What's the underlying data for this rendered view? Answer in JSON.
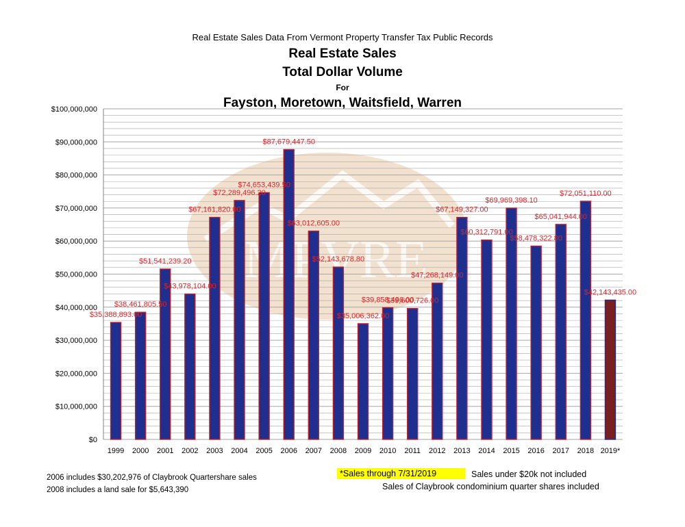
{
  "chart_data": {
    "type": "bar",
    "supertitle": "Real Estate Sales Data From Vermont Property Transfer Tax Public Records",
    "title_lines": [
      "Real Estate Sales",
      "Total Dollar Volume",
      "For",
      "Fayston, Moretown, Waitsfield, Warren"
    ],
    "categories": [
      "1999",
      "2000",
      "2001",
      "2002",
      "2003",
      "2004",
      "2005",
      "2006",
      "2007",
      "2008",
      "2009",
      "2010",
      "2011",
      "2012",
      "2013",
      "2014",
      "2015",
      "2016",
      "2017",
      "2018",
      "2019*"
    ],
    "values": [
      35388893.0,
      38461805.5,
      51541239.2,
      43978104.0,
      67161820.0,
      72289496.2,
      74653439.5,
      87679447.5,
      63012605.0,
      52143678.8,
      35006362.0,
      39858496.0,
      39600726.0,
      47268149.0,
      67149327.0,
      60312791.0,
      69969398.1,
      58478322.8,
      65041944.0,
      72051110.0,
      42143435.0
    ],
    "data_labels": [
      "$35,388,893.00",
      "$38,461,805.50",
      "$51,541,239.20",
      "$43,978,104.00",
      "$67,161,820.00",
      "$72,289,496.20",
      "$74,653,439.50",
      "$87,679,447.50",
      "$63,012,605.00",
      "$52,143,678.80",
      "$35,006,362.00",
      "$39,858,496.00",
      "$39,600,726.00",
      "$47,268,149.00",
      "$67,149,327.00",
      "$60,312,791.00",
      "$69,969,398.10",
      "$58,478,322.80",
      "$65,041,944.00",
      "$72,051,110.00",
      "$42,143,435.00"
    ],
    "ylim": [
      0,
      100000000
    ],
    "ytick_labels": [
      "$0",
      "$10,000,000",
      "$20,000,000",
      "$30,000,000",
      "$40,000,000",
      "$50,000,000",
      "$60,000,000",
      "$70,000,000",
      "$80,000,000",
      "$90,000,000",
      "$100,000,000"
    ],
    "grid": true,
    "colors": {
      "bar": "#1f2f8f",
      "bar_highlight": "#7a1f1f",
      "bar_edge": "#c0202a",
      "label": "#d8262b",
      "grid": "#a6a6a6",
      "watermark": "#e7c9a6"
    },
    "watermark_text": "MPVRE"
  },
  "notes": {
    "claybrook_2006": "2006 includes $30,202,976 of Claybrook Quartershare sales",
    "land_2008": "2008 includes a land sale for $5,643,390",
    "through_date": "*Sales through 7/31/2019",
    "under_20k": "Sales under $20k not included",
    "claybrook_condo": "Sales of Claybrook condominium quarter shares included"
  }
}
